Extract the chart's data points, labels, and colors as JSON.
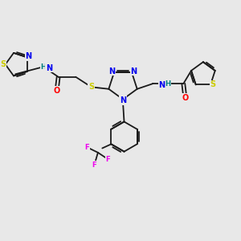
{
  "background_color": "#e8e8e8",
  "bond_color": "#1a1a1a",
  "atom_colors": {
    "N": "#0000ee",
    "S": "#cccc00",
    "O": "#ff0000",
    "F": "#ee00ee",
    "H": "#008080",
    "C": "#1a1a1a"
  },
  "figsize": [
    3.0,
    3.0
  ],
  "dpi": 100
}
